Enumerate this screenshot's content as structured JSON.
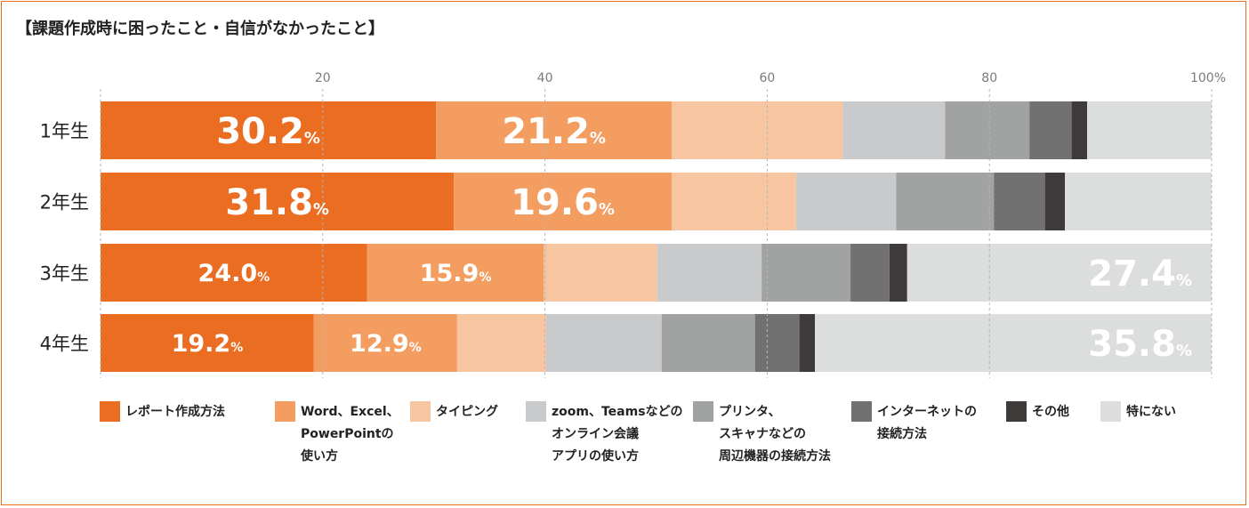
{
  "title": "【課題作成時に困ったこと・自信がなかったこと】",
  "chart_data": {
    "type": "bar",
    "orientation": "horizontal",
    "stacked": true,
    "unit": "%",
    "xlim": [
      0,
      100
    ],
    "x_ticks": [
      "20",
      "40",
      "60",
      "80",
      "100%"
    ],
    "grid": "dashed vertical",
    "categories": [
      "1年生",
      "2年生",
      "3年生",
      "4年生"
    ],
    "series": [
      {
        "name": "レポート作成方法",
        "color": "#ea6d21",
        "values": [
          30.2,
          31.8,
          24.0,
          19.2
        ]
      },
      {
        "name": "Word、Excel、PowerPointの使い方",
        "color": "#f49d60",
        "values": [
          21.2,
          19.6,
          15.9,
          12.9
        ]
      },
      {
        "name": "タイピング",
        "color": "#f7c6a0",
        "values": [
          15.4,
          11.2,
          10.2,
          8.0
        ]
      },
      {
        "name": "zoom、Teamsなどのオンライン会議アプリの使い方",
        "color": "#c9cacb",
        "values": [
          9.2,
          9.0,
          9.4,
          10.4
        ]
      },
      {
        "name": "プリンタ、スキャナなどの周辺機器の接続方法",
        "color": "#a1a2a2",
        "values": [
          7.6,
          8.8,
          8.0,
          8.4
        ]
      },
      {
        "name": "インターネットの接続方法",
        "color": "#727171",
        "values": [
          3.8,
          4.6,
          3.5,
          4.0
        ]
      },
      {
        "name": "その他",
        "color": "#3e3a39",
        "values": [
          1.4,
          1.8,
          1.6,
          1.4
        ]
      },
      {
        "name": "特にない",
        "color": "#dcdddd",
        "values": [
          11.2,
          13.2,
          27.4,
          35.8
        ]
      }
    ],
    "data_labels": [
      {
        "row": 0,
        "series": 0,
        "value": "30.2",
        "unit": "%",
        "size": "large"
      },
      {
        "row": 0,
        "series": 1,
        "value": "21.2",
        "unit": "%",
        "size": "large"
      },
      {
        "row": 1,
        "series": 0,
        "value": "31.8",
        "unit": "%",
        "size": "large"
      },
      {
        "row": 1,
        "series": 1,
        "value": "19.6",
        "unit": "%",
        "size": "large"
      },
      {
        "row": 2,
        "series": 0,
        "value": "24.0",
        "unit": "%",
        "size": "small"
      },
      {
        "row": 2,
        "series": 1,
        "value": "15.9",
        "unit": "%",
        "size": "small"
      },
      {
        "row": 2,
        "series": 7,
        "value": "27.4",
        "unit": "%",
        "size": "large"
      },
      {
        "row": 3,
        "series": 0,
        "value": "19.2",
        "unit": "%",
        "size": "small"
      },
      {
        "row": 3,
        "series": 1,
        "value": "12.9",
        "unit": "%",
        "size": "small"
      },
      {
        "row": 3,
        "series": 7,
        "value": "35.8",
        "unit": "%",
        "size": "large"
      }
    ]
  },
  "legend": [
    {
      "label": "レポート作成方法",
      "color": "#ea6d21"
    },
    {
      "label": "Word、Excel、\nPowerPointの\n使い方",
      "color": "#f49d60"
    },
    {
      "label": "タイピング",
      "color": "#f7c6a0"
    },
    {
      "label": "zoom、Teamsなどの\nオンライン会議\nアプリの使い方",
      "color": "#c9cacb"
    },
    {
      "label": "プリンタ、\nスキャナなどの\n周辺機器の接続方法",
      "color": "#a1a2a2"
    },
    {
      "label": "インターネットの\n接続方法",
      "color": "#727171"
    },
    {
      "label": "その他",
      "color": "#3e3a39"
    },
    {
      "label": "特にない",
      "color": "#dcdddd"
    }
  ]
}
